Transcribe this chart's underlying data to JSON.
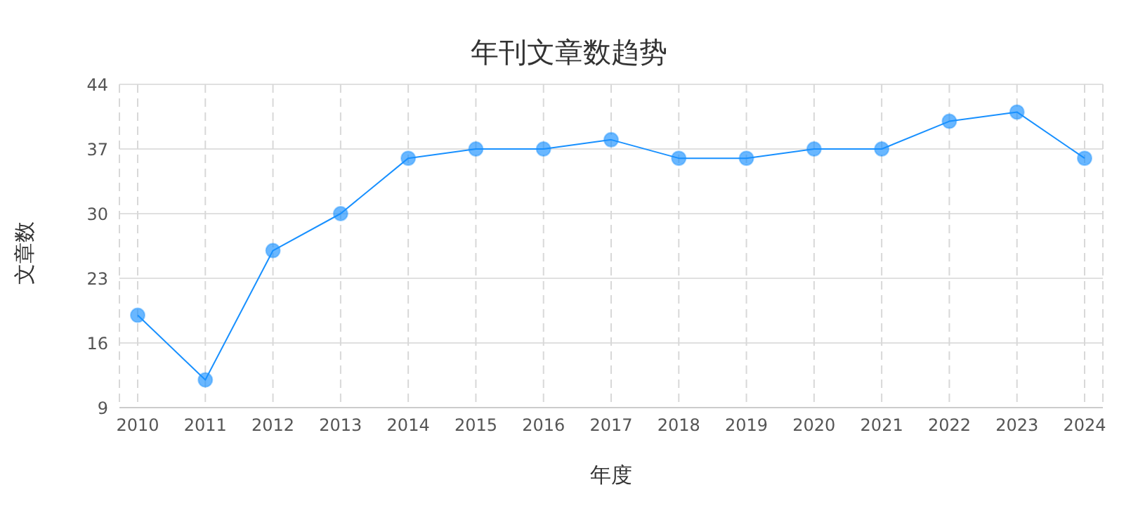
{
  "chart_data": {
    "type": "line",
    "title": "年刊文章数趋势",
    "xlabel": "年度",
    "ylabel": "文章数",
    "categories": [
      "2010",
      "2011",
      "2012",
      "2013",
      "2014",
      "2015",
      "2016",
      "2017",
      "2018",
      "2019",
      "2020",
      "2021",
      "2022",
      "2023",
      "2024"
    ],
    "series": [
      {
        "color": "#1890ff",
        "values": [
          19,
          12,
          26,
          30,
          36,
          37,
          37,
          38,
          36,
          36,
          37,
          37,
          40,
          41,
          36
        ]
      }
    ],
    "ylim": [
      9,
      44
    ],
    "yticks": [
      9,
      16,
      23,
      30,
      37,
      44
    ],
    "grid": true,
    "marker": "circle",
    "line_style": "solid"
  }
}
